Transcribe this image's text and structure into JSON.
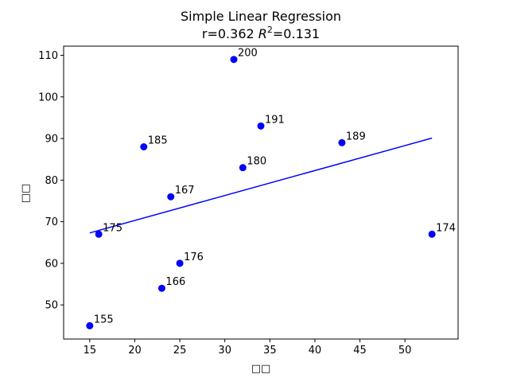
{
  "chart_data": {
    "type": "scatter",
    "title": "Simple Linear Regression",
    "subtitle_prefix": "r=0.362 ",
    "subtitle_r2_symbol": "R",
    "subtitle_r2_exp": "2",
    "subtitle_suffix": "=0.131",
    "xlabel": "□□",
    "ylabel": "□□",
    "xlim": [
      12.1,
      55.9
    ],
    "ylim": [
      41.8,
      112.2
    ],
    "xticks": [
      15,
      20,
      25,
      30,
      35,
      40,
      45,
      50
    ],
    "yticks": [
      50,
      60,
      70,
      80,
      90,
      100,
      110
    ],
    "point_color": "#0000ff",
    "line_color": "#0000ff",
    "points": [
      {
        "x": 31,
        "y": 109,
        "label": "200"
      },
      {
        "x": 34,
        "y": 93,
        "label": "191"
      },
      {
        "x": 21,
        "y": 88,
        "label": "185"
      },
      {
        "x": 43,
        "y": 89,
        "label": "189"
      },
      {
        "x": 32,
        "y": 83,
        "label": "180"
      },
      {
        "x": 24,
        "y": 76,
        "label": "167"
      },
      {
        "x": 16,
        "y": 67,
        "label": "175"
      },
      {
        "x": 53,
        "y": 67,
        "label": "174"
      },
      {
        "x": 25,
        "y": 60,
        "label": "176"
      },
      {
        "x": 23,
        "y": 54,
        "label": "166"
      },
      {
        "x": 15,
        "y": 45,
        "label": "155"
      }
    ],
    "regression_line": {
      "x": [
        15,
        53
      ],
      "y": [
        67.3,
        90.1
      ]
    }
  }
}
